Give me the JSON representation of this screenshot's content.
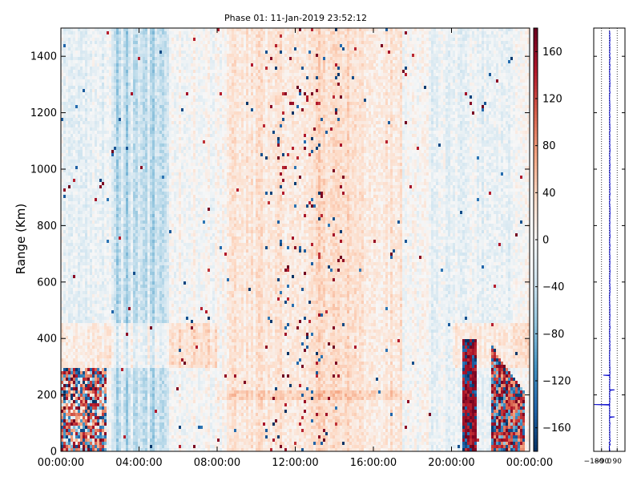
{
  "chart_data": {
    "type": "heatmap",
    "title": "Phase 01: 11-Jan-2019 23:52:12",
    "ylabel": "Range (Km)",
    "xlabel": "",
    "x_ticks": [
      "00:00:00",
      "04:00:00",
      "08:00:00",
      "12:00:00",
      "16:00:00",
      "20:00:00",
      "00:00:00"
    ],
    "x_range_hours": [
      0,
      24
    ],
    "y_ticks": [
      0,
      200,
      400,
      600,
      800,
      1000,
      1200,
      1400
    ],
    "y_range": [
      0,
      1500
    ],
    "colorbar": {
      "colormap": "RdBu_r",
      "range": [
        -180,
        180
      ],
      "ticks": [
        -160,
        -120,
        -80,
        -40,
        0,
        40,
        80,
        120,
        160
      ],
      "low_color": "#0b2a55",
      "mid_color": "#f7f7f7",
      "high_color": "#67001f"
    },
    "profile_panel": {
      "x_ticks": [
        "-180",
        "-90",
        "0",
        "90"
      ],
      "x_range": [
        -180,
        180
      ],
      "line_color": "#0000cc",
      "grid": "dotted vertical"
    },
    "grid": false
  }
}
